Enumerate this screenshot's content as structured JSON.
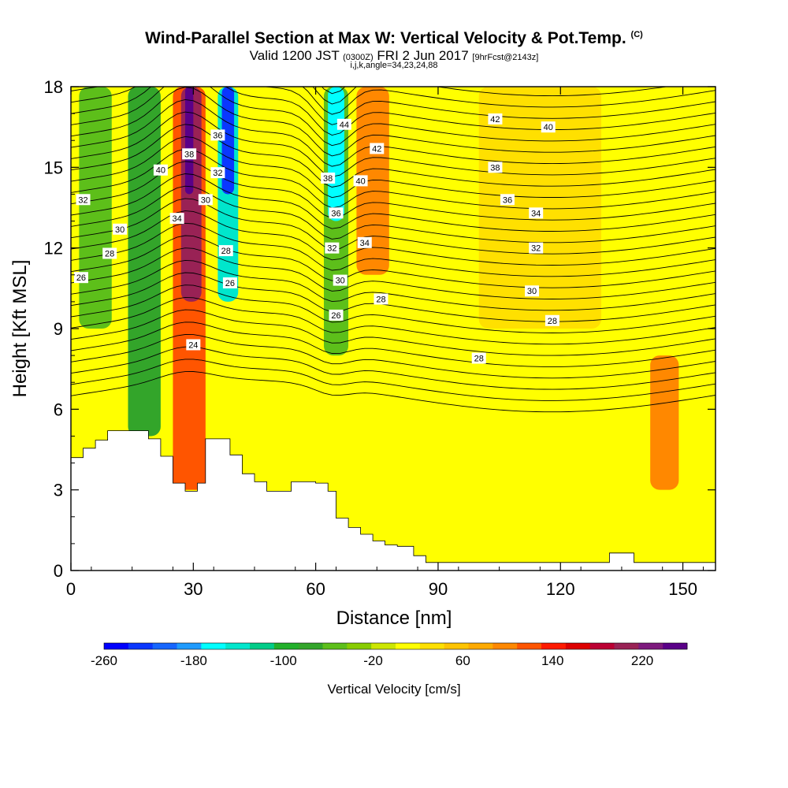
{
  "header": {
    "title": "Wind-Parallel Section at Max W: Vertical Velocity & Pot.Temp.",
    "title_mark": "(C)",
    "valid_prefix": "Valid 1200 JST",
    "valid_utc": "(0300Z)",
    "valid_date": "FRI 2 Jun 2017",
    "forecast_tag": "[9hrFcst@2143z]",
    "indices": "i,j,k,angle=34,23,24,88"
  },
  "chart_data": {
    "type": "heatmap",
    "xlabel": "Distance [nm]",
    "ylabel": "Height [Kft MSL]",
    "xlim": [
      0,
      158
    ],
    "ylim": [
      0,
      18
    ],
    "x_ticks": [
      0,
      30,
      60,
      90,
      120,
      150
    ],
    "y_ticks": [
      0,
      3,
      6,
      9,
      12,
      15,
      18
    ],
    "colorbar": {
      "title": "Vertical Velocity [cm/s]",
      "range": [
        -260,
        260
      ],
      "tick_labels": [
        -260,
        -180,
        -100,
        -20,
        60,
        140,
        220
      ],
      "colors": [
        "#0000ff",
        "#0a37ff",
        "#1666ff",
        "#1e9bff",
        "#00ffff",
        "#00e6cc",
        "#00cc88",
        "#22b02a",
        "#33a52a",
        "#5dbf1a",
        "#88cc00",
        "#cce600",
        "#ffff00",
        "#ffe000",
        "#ffc400",
        "#ffaa00",
        "#ff8800",
        "#ff5500",
        "#ff1a00",
        "#dd0000",
        "#bb0033",
        "#992255",
        "#7d1a7d",
        "#5a0088"
      ]
    },
    "terrain_profile": [
      [
        0,
        4.2
      ],
      [
        3,
        4.2
      ],
      [
        3,
        4.55
      ],
      [
        6,
        4.55
      ],
      [
        6,
        4.85
      ],
      [
        9,
        4.85
      ],
      [
        9,
        5.2
      ],
      [
        19,
        5.2
      ],
      [
        19,
        4.9
      ],
      [
        22,
        4.9
      ],
      [
        22,
        4.25
      ],
      [
        25,
        4.25
      ],
      [
        25,
        3.25
      ],
      [
        28,
        3.25
      ],
      [
        28,
        2.95
      ],
      [
        31,
        2.95
      ],
      [
        31,
        3.25
      ],
      [
        33,
        3.25
      ],
      [
        33,
        4.9
      ],
      [
        39,
        4.9
      ],
      [
        39,
        4.3
      ],
      [
        42,
        4.3
      ],
      [
        42,
        3.6
      ],
      [
        45,
        3.6
      ],
      [
        45,
        3.3
      ],
      [
        48,
        3.3
      ],
      [
        48,
        2.95
      ],
      [
        54,
        2.95
      ],
      [
        54,
        3.3
      ],
      [
        60,
        3.3
      ],
      [
        60,
        3.25
      ],
      [
        63,
        3.25
      ],
      [
        63,
        2.95
      ],
      [
        65,
        2.95
      ],
      [
        65,
        1.95
      ],
      [
        68,
        1.95
      ],
      [
        68,
        1.6
      ],
      [
        71,
        1.6
      ],
      [
        71,
        1.35
      ],
      [
        74,
        1.35
      ],
      [
        74,
        1.1
      ],
      [
        77,
        1.1
      ],
      [
        77,
        0.95
      ],
      [
        80,
        0.95
      ],
      [
        80,
        0.9
      ],
      [
        84,
        0.9
      ],
      [
        84,
        0.55
      ],
      [
        87,
        0.55
      ],
      [
        87,
        0.3
      ],
      [
        132,
        0.3
      ],
      [
        132,
        0.65
      ],
      [
        138,
        0.65
      ],
      [
        138,
        0.3
      ],
      [
        158,
        0.3
      ]
    ],
    "vertical_velocity_cells": [
      {
        "x": [
          25,
          33
        ],
        "y": [
          3,
          18
        ],
        "value": 120
      },
      {
        "x": [
          27,
          32
        ],
        "y": [
          10,
          18
        ],
        "value": 200
      },
      {
        "x": [
          28,
          30
        ],
        "y": [
          14,
          18
        ],
        "value": 240
      },
      {
        "x": [
          36,
          41
        ],
        "y": [
          10,
          18
        ],
        "value": -140
      },
      {
        "x": [
          37,
          40
        ],
        "y": [
          14,
          18
        ],
        "value": -230
      },
      {
        "x": [
          62,
          68
        ],
        "y": [
          8,
          18
        ],
        "value": -60
      },
      {
        "x": [
          63,
          67
        ],
        "y": [
          13,
          18
        ],
        "value": -160
      },
      {
        "x": [
          70,
          78
        ],
        "y": [
          11,
          18
        ],
        "value": 90
      },
      {
        "x": [
          142,
          149
        ],
        "y": [
          3,
          8
        ],
        "value": 100
      },
      {
        "x": [
          2,
          10
        ],
        "y": [
          9,
          18
        ],
        "value": -60
      },
      {
        "x": [
          14,
          22
        ],
        "y": [
          5,
          18
        ],
        "value": -70
      },
      {
        "x": [
          50,
          60
        ],
        "y": [
          7,
          18
        ],
        "value": 20
      },
      {
        "x": [
          100,
          130
        ],
        "y": [
          9,
          18
        ],
        "value": 30
      }
    ],
    "theta_contour_labels": [
      "24",
      "26",
      "28",
      "30",
      "32",
      "34",
      "36",
      "38",
      "40",
      "42",
      "44"
    ],
    "contour_label_positions_data_units": [
      {
        "text": "24",
        "x": 30,
        "y": 8.4
      },
      {
        "text": "26",
        "x": 2.5,
        "y": 10.9
      },
      {
        "text": "28",
        "x": 9.5,
        "y": 11.8
      },
      {
        "text": "30",
        "x": 12,
        "y": 12.7
      },
      {
        "text": "32",
        "x": 3,
        "y": 13.8
      },
      {
        "text": "34",
        "x": 26,
        "y": 13.1
      },
      {
        "text": "40",
        "x": 22,
        "y": 14.9
      },
      {
        "text": "38",
        "x": 29,
        "y": 15.5
      },
      {
        "text": "36",
        "x": 36,
        "y": 16.2
      },
      {
        "text": "32",
        "x": 36,
        "y": 14.8
      },
      {
        "text": "30",
        "x": 33,
        "y": 13.8
      },
      {
        "text": "28",
        "x": 38,
        "y": 11.9
      },
      {
        "text": "26",
        "x": 39,
        "y": 10.7
      },
      {
        "text": "38",
        "x": 63,
        "y": 14.6
      },
      {
        "text": "36",
        "x": 65,
        "y": 13.3
      },
      {
        "text": "32",
        "x": 64,
        "y": 12.0
      },
      {
        "text": "30",
        "x": 66,
        "y": 10.8
      },
      {
        "text": "26",
        "x": 65,
        "y": 9.5
      },
      {
        "text": "44",
        "x": 67,
        "y": 16.6
      },
      {
        "text": "42",
        "x": 75,
        "y": 15.7
      },
      {
        "text": "40",
        "x": 71,
        "y": 14.5
      },
      {
        "text": "34",
        "x": 72,
        "y": 12.2
      },
      {
        "text": "28",
        "x": 76,
        "y": 10.1
      },
      {
        "text": "42",
        "x": 104,
        "y": 16.8
      },
      {
        "text": "40",
        "x": 117,
        "y": 16.5
      },
      {
        "text": "38",
        "x": 104,
        "y": 15.0
      },
      {
        "text": "36",
        "x": 107,
        "y": 13.8
      },
      {
        "text": "34",
        "x": 114,
        "y": 13.3
      },
      {
        "text": "32",
        "x": 114,
        "y": 12.0
      },
      {
        "text": "30",
        "x": 113,
        "y": 10.4
      },
      {
        "text": "28",
        "x": 118,
        "y": 9.3
      },
      {
        "text": "28",
        "x": 100,
        "y": 7.9
      }
    ]
  }
}
